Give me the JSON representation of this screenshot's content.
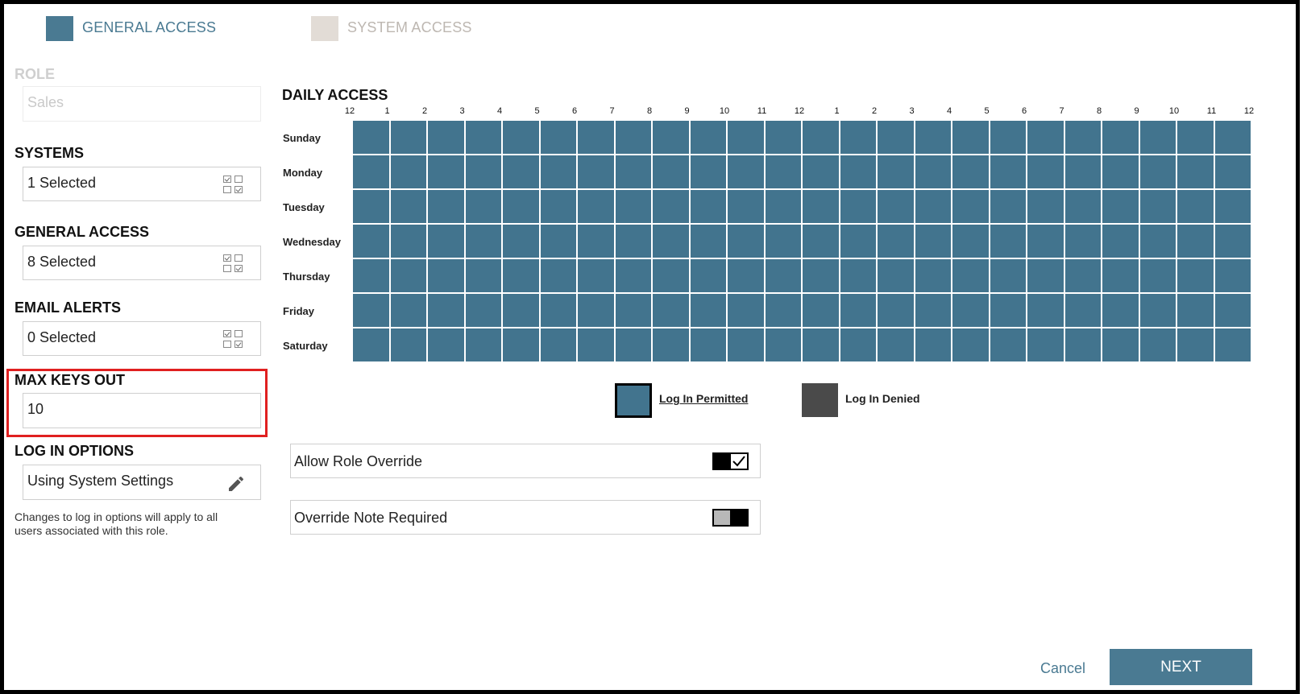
{
  "steps": [
    {
      "label": "GENERAL ACCESS",
      "color": "#4a7a92",
      "active": true
    },
    {
      "label": "SYSTEM ACCESS",
      "color": "#e2dcd6",
      "active": false
    }
  ],
  "role": {
    "title": "ROLE",
    "value": "Sales"
  },
  "systems": {
    "title": "SYSTEMS",
    "value": "1 Selected",
    "icon": "checklist-grid-icon"
  },
  "general_access": {
    "title": "GENERAL ACCESS",
    "value": "8 Selected",
    "icon": "checklist-grid-icon"
  },
  "email_alerts": {
    "title": "EMAIL ALERTS",
    "value": "0 Selected",
    "icon": "checklist-grid-icon"
  },
  "max_keys_out": {
    "title": "MAX KEYS OUT",
    "value": "10",
    "highlight_color": "#e02020"
  },
  "log_in_options": {
    "title": "LOG IN OPTIONS",
    "value": "Using System Settings",
    "icon": "pencil-icon",
    "note_line1": "Changes to log in options will apply to all",
    "note_line2": "users associated with this role."
  },
  "daily_access": {
    "title": "DAILY ACCESS",
    "hours": [
      "12",
      "1",
      "2",
      "3",
      "4",
      "5",
      "6",
      "7",
      "8",
      "9",
      "10",
      "11",
      "12",
      "1",
      "2",
      "3",
      "4",
      "5",
      "6",
      "7",
      "8",
      "9",
      "10",
      "11",
      "12"
    ],
    "days": [
      "Sunday",
      "Monday",
      "Tuesday",
      "Wednesday",
      "Thursday",
      "Friday",
      "Saturday"
    ],
    "permitted_color": "#42748e",
    "denied_color": "#4a4a4a"
  },
  "legend": {
    "permitted": "Log In Permitted",
    "denied": "Log In Denied"
  },
  "options": [
    {
      "label": "Allow Role Override",
      "on": true
    },
    {
      "label": "Override Note Required",
      "on": false
    }
  ],
  "footer": {
    "cancel": "Cancel",
    "next": "NEXT"
  }
}
